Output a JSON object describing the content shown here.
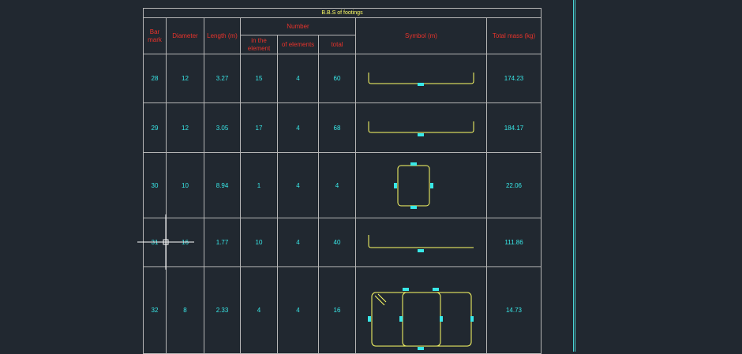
{
  "table_title": "B.B.S of footings",
  "headers": {
    "bar_mark": "Bar mark",
    "diameter": "Diameter",
    "length": "Length (m)",
    "number": "Number",
    "in_element": "in the element",
    "of_elements": "of elements",
    "total": "total",
    "symbol": "Symbol (m)",
    "total_mass": "Total mass (kg)"
  },
  "rows": [
    {
      "bar_mark": "28",
      "diameter": "12",
      "length": "3.27",
      "in_element": "15",
      "of_elements": "4",
      "total": "60",
      "total_mass": "174.23",
      "symbol": "u-bar"
    },
    {
      "bar_mark": "29",
      "diameter": "12",
      "length": "3.05",
      "in_element": "17",
      "of_elements": "4",
      "total": "68",
      "total_mass": "184.17",
      "symbol": "u-bar"
    },
    {
      "bar_mark": "30",
      "diameter": "10",
      "length": "8.94",
      "in_element": "1",
      "of_elements": "4",
      "total": "4",
      "total_mass": "22.06",
      "symbol": "square-stirrup"
    },
    {
      "bar_mark": "31",
      "diameter": "16",
      "length": "1.77",
      "in_element": "10",
      "of_elements": "4",
      "total": "40",
      "total_mass": "111.86",
      "symbol": "l-bar"
    },
    {
      "bar_mark": "32",
      "diameter": "8",
      "length": "2.33",
      "in_element": "4",
      "of_elements": "4",
      "total": "16",
      "total_mass": "14.73",
      "symbol": "double-stirrup"
    }
  ],
  "colors": {
    "background": "#212830",
    "grid": "#b5b5b5",
    "header_text": "#e8332b",
    "value_text": "#38e8e8",
    "title_text": "#ffff66",
    "symbol_line": "#ffff66",
    "grip": "#38e8e8"
  },
  "cursor": "crosshair-cursor"
}
